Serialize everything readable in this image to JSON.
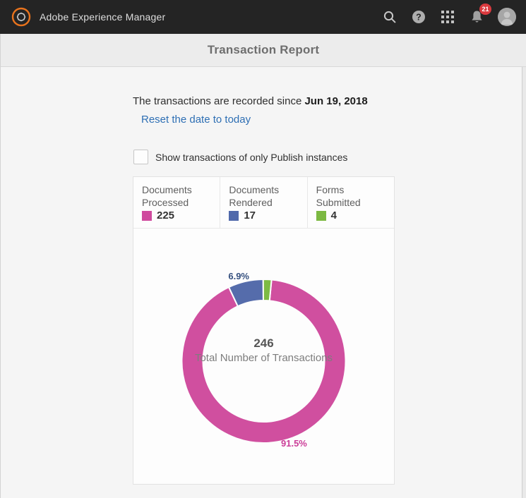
{
  "header": {
    "app_title": "Adobe Experience Manager",
    "notification_count": "21",
    "colors": {
      "bar_bg": "#242424",
      "logo_orange": "#e8731d",
      "badge_red": "#da3a3f"
    }
  },
  "title_bar": {
    "title": "Transaction Report"
  },
  "report": {
    "since_text": "The transactions are recorded since ",
    "since_date": "Jun 19, 2018",
    "reset_link": "Reset the date to today",
    "publish_checkbox_label": "Show transactions of only Publish instances",
    "checkbox_checked": false
  },
  "stats": [
    {
      "label": "Documents Processed",
      "value": "225",
      "color": "#cf4a9e"
    },
    {
      "label": "Documents Rendered",
      "value": "17",
      "color": "#5069ab"
    },
    {
      "label": "Forms Submitted",
      "value": "4",
      "color": "#7cb942"
    }
  ],
  "chart_data": {
    "type": "pie",
    "subtype": "donut",
    "title": "Transaction Report donut",
    "total": 246,
    "center_value": "246",
    "center_label": "Total Number of Transactions",
    "start_angle_deg": 5.5,
    "direction": "clockwise",
    "outer_radius": 116,
    "inner_radius": 86,
    "segments": [
      {
        "name": "Documents Processed",
        "value": 225,
        "percent_label": "91.5%",
        "color": "#d04f9f",
        "label_color": "#cb3d98"
      },
      {
        "name": "Documents Rendered",
        "value": 17,
        "percent_label": "6.9%",
        "color": "#556cab",
        "label_color": "#35507f"
      },
      {
        "name": "Forms Submitted",
        "value": 4,
        "percent_label": "",
        "color": "#7dbb44",
        "label_color": "#5a8a2a"
      }
    ]
  }
}
